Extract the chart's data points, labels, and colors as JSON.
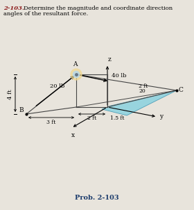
{
  "title_num": "2-103.",
  "prob_label": "Prob. 2-103",
  "bg_color": "#e8e4dc",
  "title_color": "#8b1a1a",
  "prob_color": "#1a3a6b",
  "A_label": "A",
  "B_label": "B",
  "C_label": "C",
  "x_label": "x",
  "y_label": "y",
  "z_label": "z",
  "force_40": "40 lb",
  "force_20": "20 lb",
  "dim_4ft": "4 ft",
  "dim_2ft": "2 ft",
  "dim_15ft": "1.5 ft",
  "dim_3ft": "3 ft",
  "dim_2ft_c": "2 ft",
  "dim_20": "20",
  "cyan_fill": "#7ecfe0",
  "line_color": "#444444",
  "glow_color": "#f0d890"
}
